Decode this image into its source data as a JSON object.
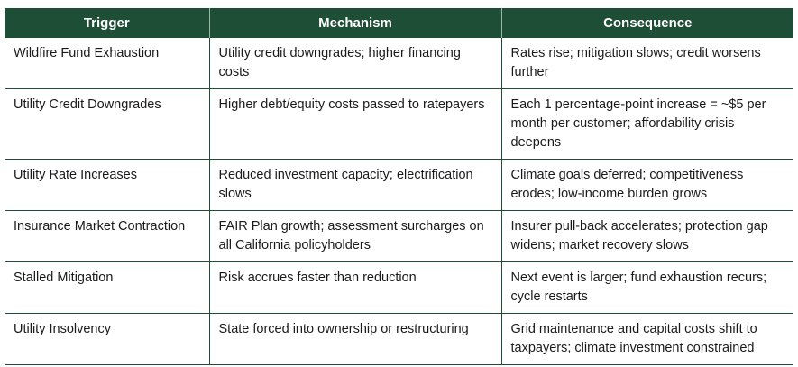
{
  "table": {
    "headers": [
      "Trigger",
      "Mechanism",
      "Consequence"
    ],
    "rows": [
      {
        "trigger": "Wildfire Fund Exhaustion",
        "mechanism": "Utility credit downgrades; higher financing costs",
        "consequence": "Rates rise; mitigation slows; credit worsens further"
      },
      {
        "trigger": "Utility Credit Downgrades",
        "mechanism": "Higher debt/equity costs passed to ratepayers",
        "consequence": "Each 1 percentage-point increase = ~$5 per month per customer; affordability crisis deepens"
      },
      {
        "trigger": "Utility Rate Increases",
        "mechanism": "Reduced investment capacity; electrification slows",
        "consequence": "Climate goals deferred; competitiveness erodes; low-income burden grows"
      },
      {
        "trigger": "Insurance Market Contraction",
        "mechanism": "FAIR Plan growth; assessment surcharges on all California policyholders",
        "consequence": "Insurer pull-back accelerates; protection gap widens; market recovery slows"
      },
      {
        "trigger": "Stalled Mitigation",
        "mechanism": "Risk accrues faster than reduction",
        "consequence": "Next event is larger; fund exhaustion recurs; cycle restarts"
      },
      {
        "trigger": "Utility Insolvency",
        "mechanism": "State forced into ownership or restructuring",
        "consequence": "Grid maintenance and capital costs shift to taxpayers; climate investment constrained"
      }
    ]
  },
  "colors": {
    "header_bg": "#1f4e37",
    "header_text": "#ffffff",
    "grid_line": "#1f4e37"
  }
}
